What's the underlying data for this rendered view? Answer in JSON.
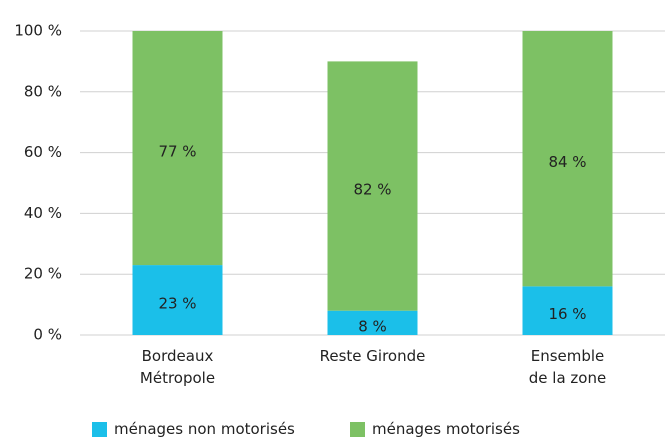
{
  "chart_data": {
    "type": "stacked-bar",
    "categories": [
      "Bordeaux\nMétropole",
      "Reste Gironde",
      "Ensemble\nde la zone"
    ],
    "series": [
      {
        "name": "ménages non motorisés",
        "color": "#1bbfe9",
        "values": [
          23,
          8,
          16
        ],
        "value_labels": [
          "23 %",
          "8 %",
          "16 %"
        ]
      },
      {
        "name": "ménages motorisés",
        "color": "#7dc164",
        "values": [
          77,
          82,
          84
        ],
        "value_labels": [
          "77 %",
          "82 %",
          "84 %"
        ]
      }
    ],
    "ylim": [
      0,
      100
    ],
    "yticks": [
      {
        "value": 0,
        "label": "0 %"
      },
      {
        "value": 20,
        "label": "20 %"
      },
      {
        "value": 40,
        "label": "40 %"
      },
      {
        "value": 60,
        "label": "60 %"
      },
      {
        "value": 80,
        "label": "80 %"
      },
      {
        "value": 100,
        "label": "100 %"
      }
    ],
    "grid": true,
    "legend": "bottom"
  }
}
